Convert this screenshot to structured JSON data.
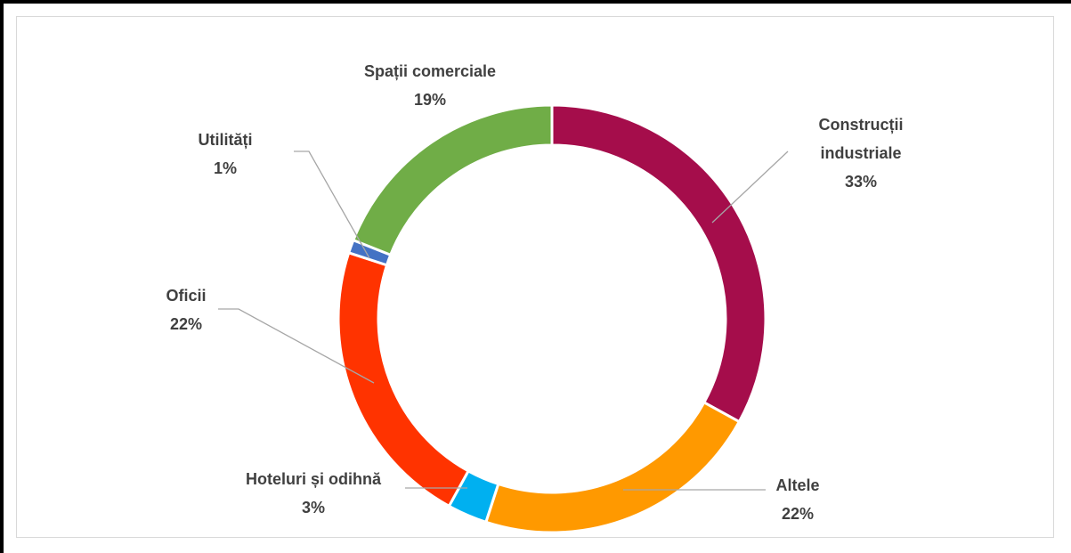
{
  "chart_data": {
    "type": "donut",
    "categories": [
      "Construcții industriale",
      "Altele",
      "Hoteluri și odihnă",
      "Oficii",
      "Utilități",
      "Spații comerciale"
    ],
    "values": [
      33,
      22,
      3,
      22,
      1,
      19
    ],
    "value_labels": [
      "33%",
      "22%",
      "3%",
      "22%",
      "1%",
      "19%"
    ],
    "colors": [
      "#a50d4b",
      "#ff9900",
      "#00b0f0",
      "#ff3300",
      "#4472c4",
      "#70ad47"
    ]
  }
}
